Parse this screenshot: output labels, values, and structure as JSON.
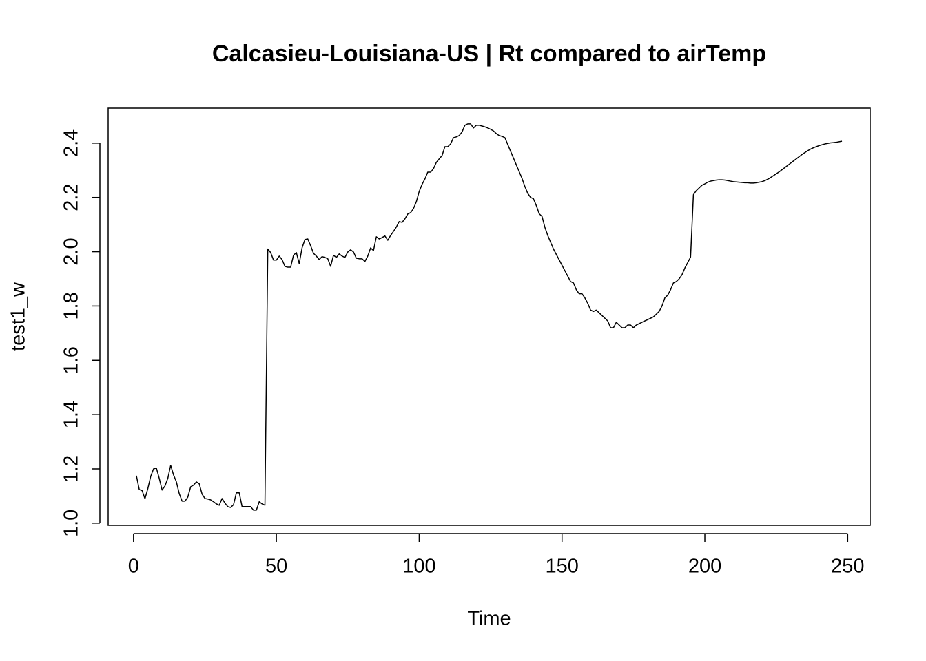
{
  "chart_data": {
    "type": "line",
    "title": "Calcasieu-Louisiana-US | Rt compared to airTemp",
    "x_label": "Time",
    "y_label": "test1_w",
    "x": [
      1,
      2,
      3,
      4,
      5,
      6,
      7,
      8,
      9,
      10,
      11,
      12,
      13,
      14,
      15,
      16,
      17,
      18,
      19,
      20,
      21,
      22,
      23,
      24,
      25,
      26,
      27,
      28,
      29,
      30,
      31,
      32,
      33,
      34,
      35,
      36,
      37,
      38,
      39,
      40,
      41,
      42,
      43,
      44,
      45,
      46,
      47,
      48,
      49,
      50,
      51,
      52,
      53,
      54,
      55,
      56,
      57,
      58,
      59,
      60,
      61,
      62,
      63,
      64,
      65,
      66,
      67,
      68,
      69,
      70,
      71,
      72,
      73,
      74,
      75,
      76,
      77,
      78,
      79,
      80,
      81,
      82,
      83,
      84,
      85,
      86,
      87,
      88,
      89,
      90,
      91,
      92,
      93,
      94,
      95,
      96,
      97,
      98,
      99,
      100,
      101,
      102,
      103,
      104,
      105,
      106,
      107,
      108,
      109,
      110,
      111,
      112,
      113,
      114,
      115,
      116,
      117,
      118,
      119,
      120,
      121,
      122,
      123,
      124,
      125,
      126,
      127,
      128,
      129,
      130,
      131,
      132,
      133,
      134,
      135,
      136,
      137,
      138,
      139,
      140,
      141,
      142,
      143,
      144,
      145,
      146,
      147,
      148,
      149,
      150,
      151,
      152,
      153,
      154,
      155,
      156,
      157,
      158,
      159,
      160,
      161,
      162,
      163,
      164,
      165,
      166,
      167,
      168,
      169,
      170,
      171,
      172,
      173,
      174,
      175,
      176,
      177,
      178,
      179,
      180,
      181,
      182,
      183,
      184,
      185,
      186,
      187,
      188,
      189,
      190,
      191,
      192,
      193,
      194,
      195,
      196,
      197,
      198,
      199,
      200,
      201,
      202,
      203,
      204,
      205,
      206,
      207,
      208,
      209,
      210,
      211,
      212,
      213,
      214,
      215,
      216,
      217,
      218,
      219,
      220,
      221,
      222,
      223,
      224,
      225,
      226,
      227,
      228,
      229,
      230,
      231,
      232,
      233,
      234,
      235,
      236,
      237,
      238,
      239,
      240,
      241,
      242,
      243,
      244,
      245,
      246,
      247,
      248
    ],
    "series": [
      {
        "name": "test1_w",
        "color": "#000000",
        "values": [
          1.175,
          1.124,
          1.12,
          1.09,
          1.127,
          1.172,
          1.2,
          1.203,
          1.165,
          1.122,
          1.137,
          1.165,
          1.213,
          1.178,
          1.152,
          1.109,
          1.081,
          1.081,
          1.096,
          1.134,
          1.14,
          1.152,
          1.145,
          1.107,
          1.091,
          1.089,
          1.086,
          1.079,
          1.071,
          1.066,
          1.091,
          1.074,
          1.061,
          1.058,
          1.068,
          1.112,
          1.112,
          1.061,
          1.061,
          1.061,
          1.061,
          1.048,
          1.048,
          1.079,
          1.071,
          1.066,
          2.01,
          1.997,
          1.969,
          1.969,
          1.984,
          1.971,
          1.946,
          1.943,
          1.943,
          1.987,
          1.997,
          1.956,
          2.014,
          2.045,
          2.047,
          2.022,
          1.994,
          1.984,
          1.971,
          1.982,
          1.979,
          1.974,
          1.946,
          1.987,
          1.979,
          1.992,
          1.984,
          1.979,
          1.999,
          2.007,
          1.999,
          1.976,
          1.974,
          1.974,
          1.964,
          1.984,
          2.014,
          2.004,
          2.055,
          2.047,
          2.052,
          2.058,
          2.042,
          2.06,
          2.075,
          2.091,
          2.111,
          2.108,
          2.121,
          2.139,
          2.144,
          2.159,
          2.184,
          2.222,
          2.248,
          2.268,
          2.293,
          2.293,
          2.306,
          2.329,
          2.342,
          2.354,
          2.387,
          2.387,
          2.397,
          2.42,
          2.423,
          2.428,
          2.441,
          2.466,
          2.471,
          2.471,
          2.456,
          2.466,
          2.466,
          2.463,
          2.46,
          2.456,
          2.451,
          2.445,
          2.435,
          2.428,
          2.425,
          2.42,
          2.395,
          2.37,
          2.345,
          2.32,
          2.295,
          2.27,
          2.24,
          2.215,
          2.2,
          2.195,
          2.17,
          2.14,
          2.13,
          2.09,
          2.06,
          2.035,
          2.01,
          1.99,
          1.97,
          1.95,
          1.93,
          1.91,
          1.89,
          1.885,
          1.86,
          1.845,
          1.845,
          1.83,
          1.81,
          1.785,
          1.78,
          1.785,
          1.775,
          1.765,
          1.755,
          1.745,
          1.72,
          1.72,
          1.74,
          1.73,
          1.72,
          1.72,
          1.73,
          1.73,
          1.72,
          1.73,
          1.735,
          1.74,
          1.745,
          1.75,
          1.755,
          1.76,
          1.77,
          1.78,
          1.8,
          1.83,
          1.84,
          1.86,
          1.885,
          1.89,
          1.9,
          1.915,
          1.94,
          1.96,
          1.98,
          2.21,
          2.225,
          2.235,
          2.245,
          2.25,
          2.256,
          2.26,
          2.262,
          2.264,
          2.265,
          2.265,
          2.264,
          2.262,
          2.26,
          2.258,
          2.257,
          2.256,
          2.255,
          2.254,
          2.254,
          2.253,
          2.253,
          2.254,
          2.256,
          2.258,
          2.262,
          2.267,
          2.273,
          2.28,
          2.287,
          2.294,
          2.302,
          2.31,
          2.318,
          2.326,
          2.334,
          2.342,
          2.35,
          2.358,
          2.365,
          2.372,
          2.378,
          2.383,
          2.387,
          2.391,
          2.394,
          2.397,
          2.399,
          2.401,
          2.402,
          2.403,
          2.405,
          2.407
        ]
      }
    ],
    "xlim": [
      -8.88,
      257.88
    ],
    "ylim": [
      0.992,
      2.529
    ],
    "xticks": [
      0,
      50,
      100,
      150,
      200,
      250
    ],
    "yticks": [
      {
        "value": 1,
        "label": "1.0"
      },
      1.2,
      1.4,
      1.6,
      1.8,
      {
        "value": 2,
        "label": "2.0"
      },
      2.2,
      2.4
    ],
    "grid": false
  }
}
